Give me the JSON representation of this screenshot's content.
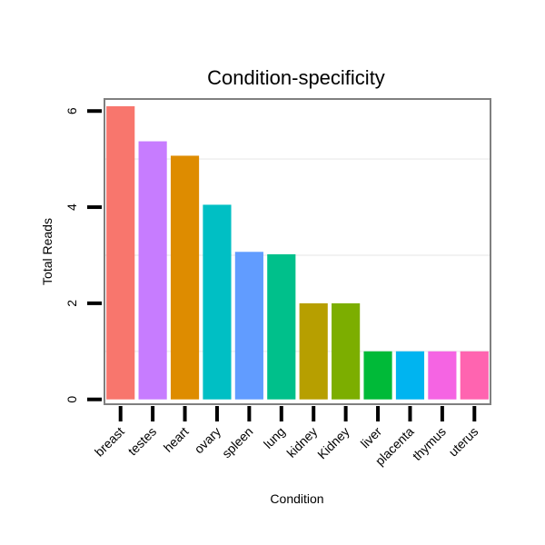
{
  "chart_data": {
    "type": "bar",
    "title": "Condition-specificity",
    "xlabel": "Condition",
    "ylabel": "Total Reads",
    "categories": [
      "breast",
      "testes",
      "heart",
      "ovary",
      "spleen",
      "lung",
      "kidney",
      "Kidney",
      "liver",
      "placenta",
      "thymus",
      "uterus"
    ],
    "values": [
      6.1,
      5.37,
      5.07,
      4.05,
      3.07,
      3.02,
      2.0,
      2.0,
      1.0,
      1.0,
      1.0,
      1.0
    ],
    "colors": [
      "#F8766D",
      "#C77CFF",
      "#DE8C00",
      "#00BFC4",
      "#619CFF",
      "#00C08B",
      "#B79F00",
      "#7CAE00",
      "#00BA38",
      "#00B4F0",
      "#F564E3",
      "#FF64B0"
    ],
    "yticks": [
      0,
      2,
      4,
      6
    ],
    "ylim": [
      -0.1,
      6.25
    ],
    "grid": true,
    "legend": "none"
  }
}
